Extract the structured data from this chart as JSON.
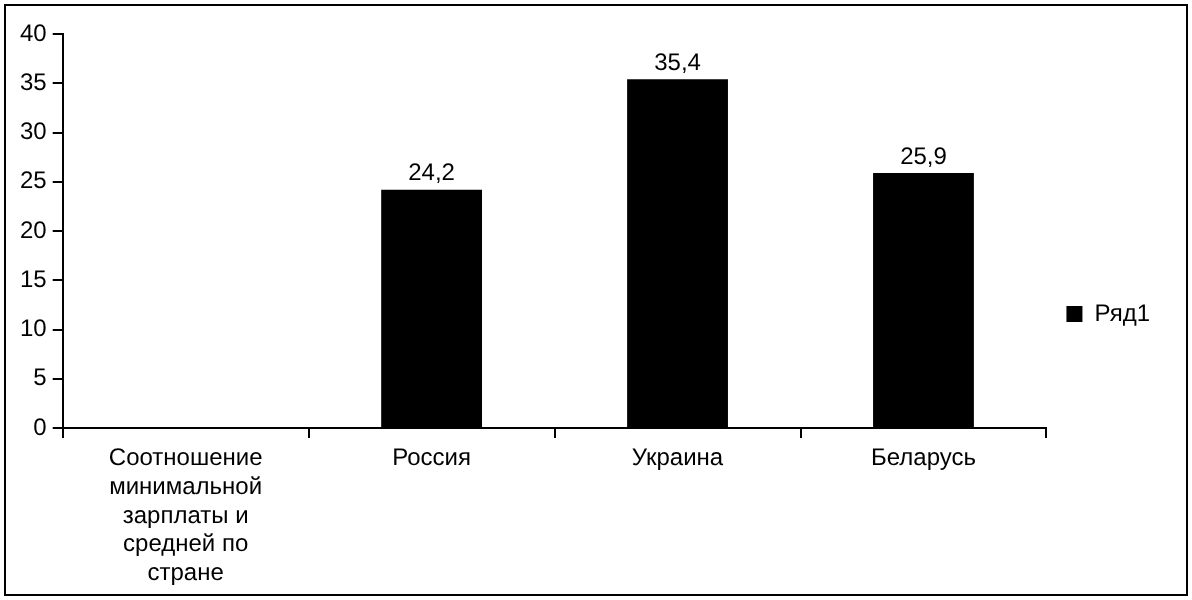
{
  "chart_data": {
    "type": "bar",
    "categories": [
      "Соотношение минимальной зарплаты и средней по стране",
      "Россия",
      "Украина",
      "Беларусь"
    ],
    "series": [
      {
        "name": "Ряд1",
        "color": "#000000",
        "values": [
          null,
          24.2,
          35.4,
          25.9
        ],
        "value_labels": [
          null,
          "24,2",
          "35,4",
          "25,9"
        ]
      }
    ],
    "ylim": [
      0,
      40
    ],
    "yticks": [
      0,
      5,
      10,
      15,
      20,
      25,
      30,
      35,
      40
    ],
    "grid": false,
    "legend": "right"
  }
}
